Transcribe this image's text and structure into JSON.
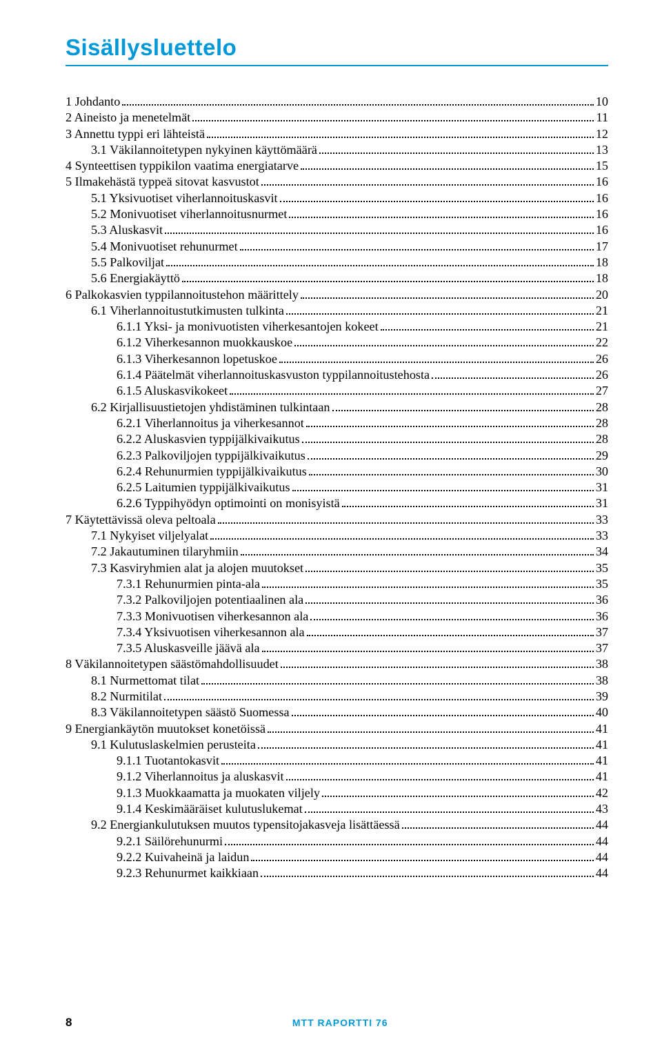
{
  "title": "Sisällysluettelo",
  "title_color": "#0098d8",
  "title_fontsize": 33,
  "rule_color": "#0098d8",
  "text_color": "#000000",
  "background_color": "#ffffff",
  "footer": {
    "page_number": "8",
    "publication": "MTT RAPORTTI 76",
    "pub_color": "#0098d8"
  },
  "entries": [
    {
      "level": 0,
      "label": "1 Johdanto",
      "page": "10"
    },
    {
      "level": 0,
      "label": "2 Aineisto ja menetelmät",
      "page": "11"
    },
    {
      "level": 0,
      "label": "3 Annettu typpi eri lähteistä",
      "page": "12"
    },
    {
      "level": 1,
      "label": "3.1 Väkilannoitetypen nykyinen käyttömäärä",
      "page": "13"
    },
    {
      "level": 0,
      "label": "4 Synteettisen typpikilon vaatima energiatarve",
      "page": "15"
    },
    {
      "level": 0,
      "label": "5 Ilmakehästä typpeä sitovat kasvustot",
      "page": "16"
    },
    {
      "level": 1,
      "label": "5.1 Yksivuotiset viherlannoituskasvit",
      "page": "16"
    },
    {
      "level": 1,
      "label": "5.2 Monivuotiset viherlannoitusnurmet",
      "page": "16"
    },
    {
      "level": 1,
      "label": "5.3 Aluskasvit",
      "page": "16"
    },
    {
      "level": 1,
      "label": "5.4 Monivuotiset rehunurmet",
      "page": "17"
    },
    {
      "level": 1,
      "label": "5.5 Palkoviljat",
      "page": "18"
    },
    {
      "level": 1,
      "label": "5.6 Energiakäyttö",
      "page": "18"
    },
    {
      "level": 0,
      "label": "6 Palkokasvien typpilannoitustehon määrittely",
      "page": "20"
    },
    {
      "level": 1,
      "label": "6.1 Viherlannoitustutkimusten tulkinta",
      "page": "21"
    },
    {
      "level": 2,
      "label": "6.1.1 Yksi- ja monivuotisten viherkesantojen kokeet",
      "page": "21"
    },
    {
      "level": 2,
      "label": "6.1.2 Viherkesannon muokkauskoe",
      "page": "22"
    },
    {
      "level": 2,
      "label": "6.1.3 Viherkesannon lopetuskoe",
      "page": "26"
    },
    {
      "level": 2,
      "label": "6.1.4 Päätelmät viherlannoituskasvuston typpilannoitustehosta",
      "page": "26"
    },
    {
      "level": 2,
      "label": "6.1.5 Aluskasvikokeet",
      "page": "27"
    },
    {
      "level": 1,
      "label": "6.2 Kirjallisuustietojen yhdistäminen tulkintaan",
      "page": "28"
    },
    {
      "level": 2,
      "label": "6.2.1 Viherlannoitus ja viherkesannot",
      "page": "28"
    },
    {
      "level": 2,
      "label": "6.2.2 Aluskasvien typpijälkivaikutus",
      "page": "28"
    },
    {
      "level": 2,
      "label": "6.2.3 Palkoviljojen typpijälkivaikutus",
      "page": "29"
    },
    {
      "level": 2,
      "label": "6.2.4 Rehunurmien typpijälkivaikutus",
      "page": "30"
    },
    {
      "level": 2,
      "label": "6.2.5 Laitumien typpijälkivaikutus",
      "page": "31"
    },
    {
      "level": 2,
      "label": "6.2.6 Typpihyödyn optimointi on monisyistä",
      "page": "31"
    },
    {
      "level": 0,
      "label": "7 Käytettävissä oleva peltoala",
      "page": "33"
    },
    {
      "level": 1,
      "label": "7.1 Nykyiset viljelyalat",
      "page": "33"
    },
    {
      "level": 1,
      "label": "7.2 Jakautuminen tilaryhmiin",
      "page": "34"
    },
    {
      "level": 1,
      "label": "7.3 Kasviryhmien alat ja alojen muutokset",
      "page": "35"
    },
    {
      "level": 2,
      "label": "7.3.1 Rehunurmien pinta-ala",
      "page": "35"
    },
    {
      "level": 2,
      "label": "7.3.2 Palkoviljojen potentiaalinen ala",
      "page": "36"
    },
    {
      "level": 2,
      "label": "7.3.3 Monivuotisen viherkesannon ala",
      "page": "36"
    },
    {
      "level": 2,
      "label": "7.3.4 Yksivuotisen viherkesannon ala",
      "page": "37"
    },
    {
      "level": 2,
      "label": "7.3.5 Aluskasveille jäävä ala",
      "page": "37"
    },
    {
      "level": 0,
      "label": "8 Väkilannoitetypen säästömahdollisuudet",
      "page": "38"
    },
    {
      "level": 1,
      "label": "8.1 Nurmettomat tilat",
      "page": "38"
    },
    {
      "level": 1,
      "label": "8.2 Nurmitilat",
      "page": "39"
    },
    {
      "level": 1,
      "label": "8.3 Väkilannoitetypen säästö Suomessa",
      "page": "40"
    },
    {
      "level": 0,
      "label": "9 Energiankäytön muutokset konetöissä",
      "page": "41"
    },
    {
      "level": 1,
      "label": "9.1 Kulutuslaskelmien perusteita",
      "page": "41"
    },
    {
      "level": 2,
      "label": "9.1.1 Tuotantokasvit",
      "page": "41"
    },
    {
      "level": 2,
      "label": "9.1.2 Viherlannoitus ja aluskasvit",
      "page": "41"
    },
    {
      "level": 2,
      "label": "9.1.3 Muokkaamatta ja muokaten viljely",
      "page": "42"
    },
    {
      "level": 2,
      "label": "9.1.4 Keskimääräiset kulutuslukemat",
      "page": "43"
    },
    {
      "level": 1,
      "label": "9.2 Energiankulutuksen muutos typensitojakasveja lisättäessä",
      "page": "44"
    },
    {
      "level": 2,
      "label": "9.2.1 Säilörehunurmi",
      "page": "44"
    },
    {
      "level": 2,
      "label": "9.2.2 Kuivaheinä ja laidun",
      "page": "44"
    },
    {
      "level": 2,
      "label": "9.2.3 Rehunurmet kaikkiaan",
      "page": "44"
    }
  ]
}
